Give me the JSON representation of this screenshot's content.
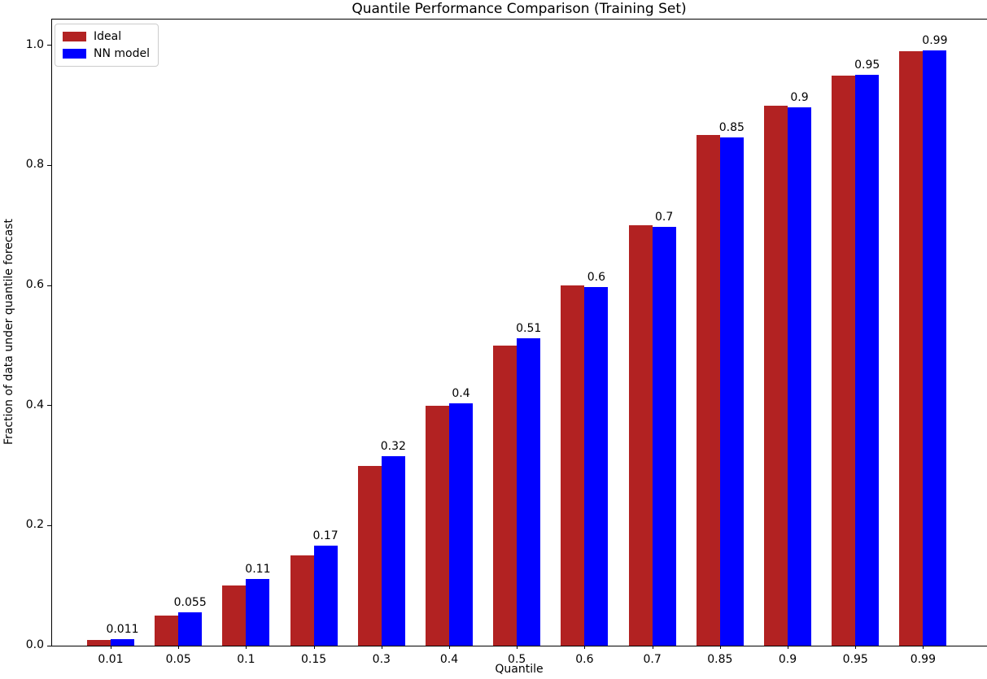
{
  "chart_data": {
    "type": "bar",
    "title": "Quantile Performance Comparison (Training Set)",
    "xlabel": "Quantile",
    "ylabel": "Fraction of data under quantile forecast",
    "categories": [
      "0.01",
      "0.05",
      "0.1",
      "0.15",
      "0.3",
      "0.4",
      "0.5",
      "0.6",
      "0.7",
      "0.85",
      "0.9",
      "0.95",
      "0.99"
    ],
    "series": [
      {
        "name": "Ideal",
        "color": "#b22222",
        "values": [
          0.01,
          0.05,
          0.1,
          0.15,
          0.3,
          0.4,
          0.5,
          0.6,
          0.7,
          0.85,
          0.9,
          0.95,
          0.99
        ]
      },
      {
        "name": "NN model",
        "color": "#0000ff",
        "values": [
          0.011,
          0.055,
          0.111,
          0.167,
          0.315,
          0.403,
          0.512,
          0.597,
          0.698,
          0.847,
          0.897,
          0.951,
          0.992
        ]
      }
    ],
    "bar_labels": [
      "0.011",
      "0.055",
      "0.11",
      "0.17",
      "0.32",
      "0.4",
      "0.51",
      "0.6",
      "0.7",
      "0.85",
      "0.9",
      "0.95",
      "0.99"
    ],
    "yticks": [
      0.0,
      0.2,
      0.4,
      0.6,
      0.8,
      1.0
    ],
    "ytick_labels": [
      "0.0",
      "0.2",
      "0.4",
      "0.6",
      "0.8",
      "1.0"
    ],
    "ylim": [
      0,
      1.043
    ],
    "grid": false,
    "legend_position": "upper-left",
    "background_color": "#ffffff",
    "text_color": "#000000"
  }
}
